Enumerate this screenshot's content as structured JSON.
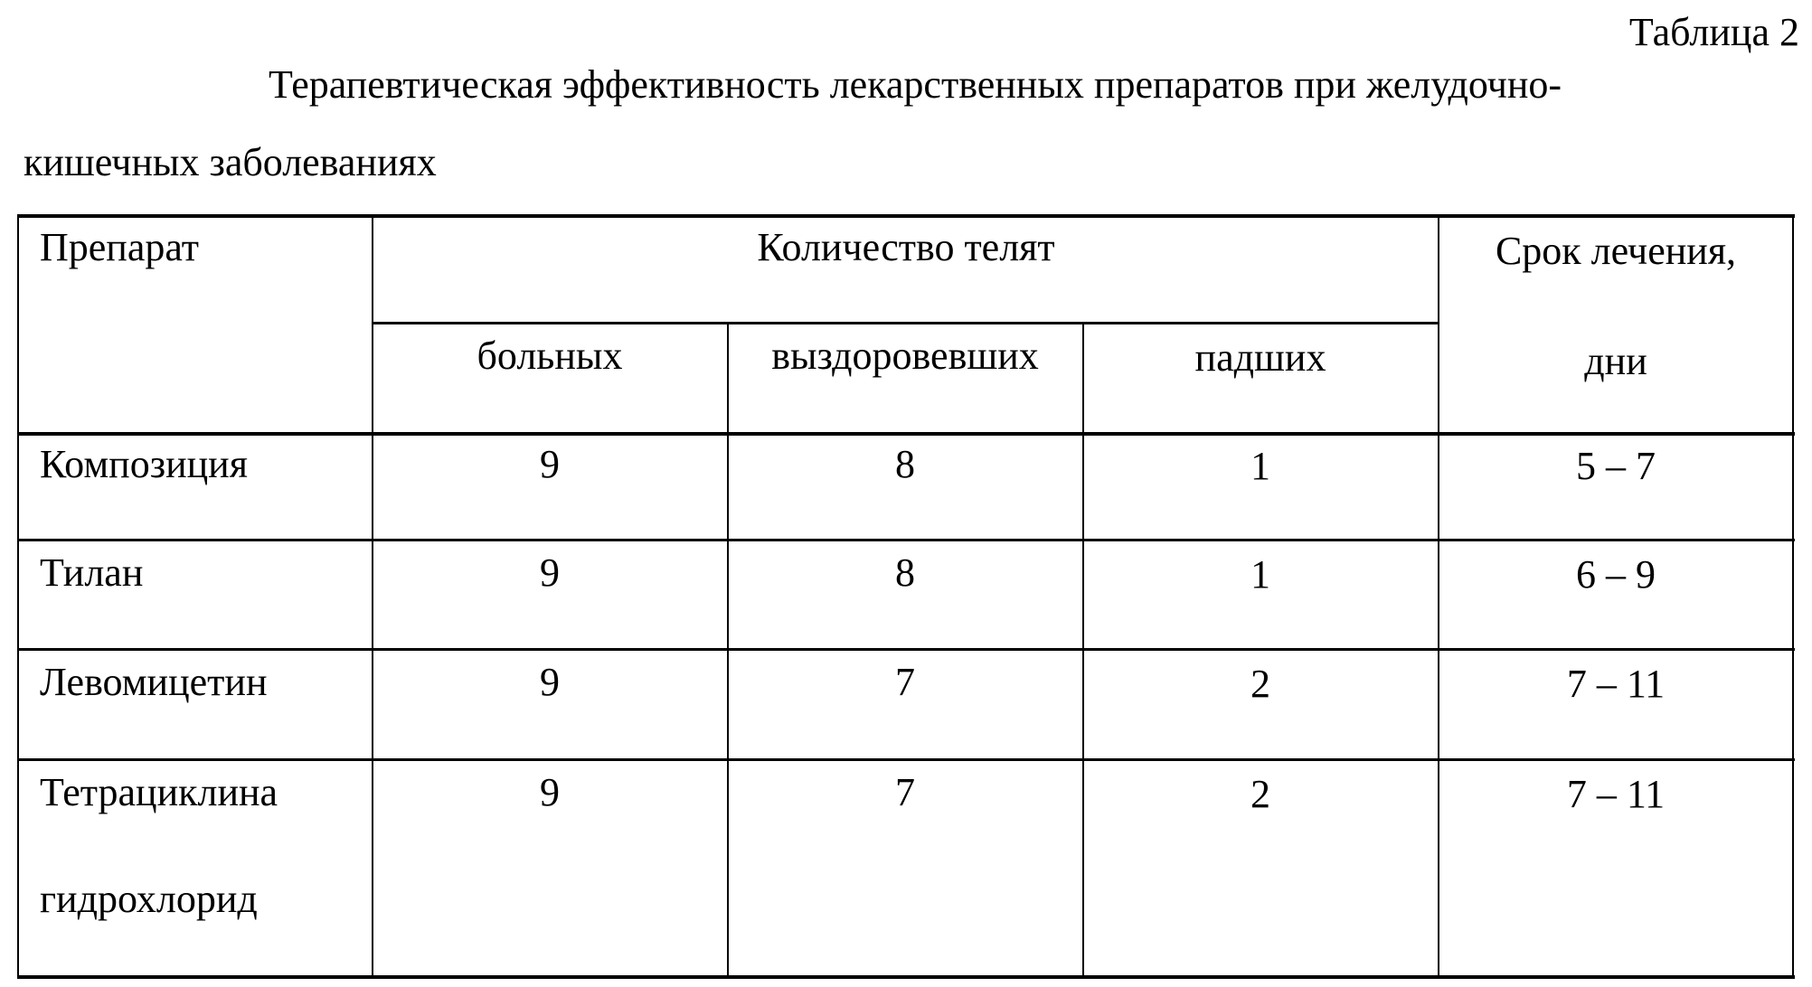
{
  "table_label": "Таблица 2",
  "title_line1": "Терапевтическая эффективность лекарственных препаратов при желудочно-",
  "title_line2": "кишечных заболеваниях",
  "table": {
    "header": {
      "drug": "Препарат",
      "count_group": "Количество телят",
      "sick": "больных",
      "recovered": "выздоровевших",
      "dead": "падших",
      "duration_line1": "Срок лечения,",
      "duration_line2": "дни"
    },
    "rows": [
      {
        "drug": "Композиция",
        "drug2": "",
        "sick": "9",
        "recovered": "8",
        "dead": "1",
        "duration": "5 – 7"
      },
      {
        "drug": "Тилан",
        "drug2": "",
        "sick": "9",
        "recovered": "8",
        "dead": "1",
        "duration": "6 – 9"
      },
      {
        "drug": "Левомицетин",
        "drug2": "",
        "sick": "9",
        "recovered": "7",
        "dead": "2",
        "duration": "7 – 11"
      },
      {
        "drug": "Тетрациклина",
        "drug2": "гидрохлорид",
        "sick": "9",
        "recovered": "7",
        "dead": "2",
        "duration": "7 – 11"
      }
    ]
  }
}
